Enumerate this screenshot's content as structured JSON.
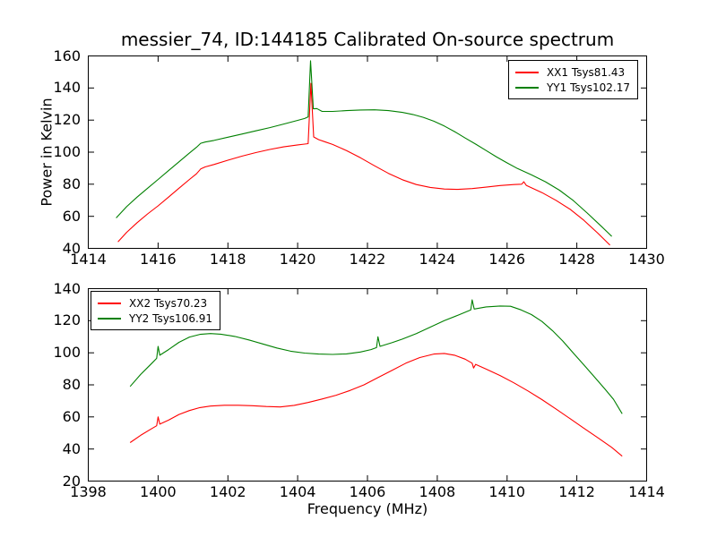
{
  "title": "messier_74, ID:144185 Calibrated On-source spectrum",
  "background": "#ffffff",
  "axis_color": "#000000",
  "chart_data": [
    {
      "type": "line",
      "name": "top-subplot",
      "xlim": [
        1414,
        1430
      ],
      "ylim": [
        40,
        160
      ],
      "xticks": [
        1414,
        1416,
        1418,
        1420,
        1422,
        1424,
        1426,
        1428,
        1430
      ],
      "yticks": [
        40,
        60,
        80,
        100,
        120,
        140,
        160
      ],
      "xlabel": "",
      "ylabel": "Power in Kelvin",
      "grid": false,
      "legend": {
        "loc": "upper right",
        "entries": [
          {
            "label": "XX1 Tsys81.43",
            "color": "#ff0000"
          },
          {
            "label": "YY1 Tsys102.17",
            "color": "#008000"
          }
        ]
      },
      "series": [
        {
          "name": "XX1",
          "color": "#ff0000",
          "points": [
            [
              1414.85,
              44
            ],
            [
              1415.1,
              50
            ],
            [
              1415.4,
              56
            ],
            [
              1415.7,
              61.5
            ],
            [
              1416.0,
              66.5
            ],
            [
              1416.3,
              72
            ],
            [
              1416.6,
              77.5
            ],
            [
              1416.9,
              83
            ],
            [
              1417.1,
              86.5
            ],
            [
              1417.22,
              89.5
            ],
            [
              1417.35,
              90.8
            ],
            [
              1417.6,
              92.3
            ],
            [
              1418.0,
              95
            ],
            [
              1418.4,
              97.5
            ],
            [
              1418.8,
              99.7
            ],
            [
              1419.2,
              101.7
            ],
            [
              1419.6,
              103.3
            ],
            [
              1420.0,
              104.5
            ],
            [
              1420.2,
              105
            ],
            [
              1420.3,
              105.3
            ],
            [
              1420.38,
              143
            ],
            [
              1420.46,
              109.5
            ],
            [
              1420.6,
              107.8
            ],
            [
              1420.8,
              106.3
            ],
            [
              1421.0,
              104.8
            ],
            [
              1421.4,
              101
            ],
            [
              1421.8,
              96.5
            ],
            [
              1422.2,
              91.5
            ],
            [
              1422.6,
              86.8
            ],
            [
              1423.0,
              82.8
            ],
            [
              1423.4,
              79.8
            ],
            [
              1423.8,
              78
            ],
            [
              1424.2,
              77
            ],
            [
              1424.6,
              76.8
            ],
            [
              1425.0,
              77.3
            ],
            [
              1425.4,
              78.2
            ],
            [
              1425.8,
              79.2
            ],
            [
              1426.2,
              79.8
            ],
            [
              1426.42,
              80
            ],
            [
              1426.48,
              81.5
            ],
            [
              1426.55,
              79.3
            ],
            [
              1427.0,
              74.8
            ],
            [
              1427.4,
              70
            ],
            [
              1427.8,
              64.5
            ],
            [
              1428.2,
              57.5
            ],
            [
              1428.6,
              49.5
            ],
            [
              1428.95,
              42
            ]
          ]
        },
        {
          "name": "YY1",
          "color": "#008000",
          "points": [
            [
              1414.8,
              59
            ],
            [
              1415.1,
              66
            ],
            [
              1415.4,
              72
            ],
            [
              1415.7,
              77.5
            ],
            [
              1416.0,
              83
            ],
            [
              1416.3,
              88.5
            ],
            [
              1416.6,
              94
            ],
            [
              1416.9,
              99.5
            ],
            [
              1417.1,
              103
            ],
            [
              1417.22,
              105.5
            ],
            [
              1417.35,
              106.3
            ],
            [
              1417.6,
              107.3
            ],
            [
              1418.0,
              109.3
            ],
            [
              1418.4,
              111.3
            ],
            [
              1418.8,
              113.3
            ],
            [
              1419.2,
              115.3
            ],
            [
              1419.6,
              117.5
            ],
            [
              1420.0,
              119.8
            ],
            [
              1420.2,
              121
            ],
            [
              1420.3,
              122
            ],
            [
              1420.37,
              157
            ],
            [
              1420.45,
              127
            ],
            [
              1420.55,
              127.2
            ],
            [
              1420.7,
              125.4
            ],
            [
              1421.0,
              125.4
            ],
            [
              1421.4,
              125.9
            ],
            [
              1421.8,
              126.3
            ],
            [
              1422.2,
              126.4
            ],
            [
              1422.6,
              125.9
            ],
            [
              1423.0,
              124.8
            ],
            [
              1423.3,
              123.5
            ],
            [
              1423.6,
              121.7
            ],
            [
              1423.9,
              119.3
            ],
            [
              1424.2,
              116.3
            ],
            [
              1424.5,
              112.8
            ],
            [
              1424.8,
              108.8
            ],
            [
              1425.1,
              105
            ],
            [
              1425.4,
              101
            ],
            [
              1425.7,
              97
            ],
            [
              1426.0,
              93.3
            ],
            [
              1426.3,
              89.8
            ],
            [
              1426.7,
              85.8
            ],
            [
              1427.1,
              81.5
            ],
            [
              1427.5,
              76.3
            ],
            [
              1427.9,
              69.8
            ],
            [
              1428.3,
              62
            ],
            [
              1428.7,
              53.8
            ],
            [
              1429.0,
              47.5
            ]
          ]
        }
      ]
    },
    {
      "type": "line",
      "name": "bottom-subplot",
      "xlim": [
        1398,
        1414
      ],
      "ylim": [
        20,
        140
      ],
      "xticks": [
        1398,
        1400,
        1402,
        1404,
        1406,
        1408,
        1410,
        1412,
        1414
      ],
      "yticks": [
        20,
        40,
        60,
        80,
        100,
        120,
        140
      ],
      "xlabel": "Frequency (MHz)",
      "ylabel": "",
      "grid": false,
      "legend": {
        "loc": "upper left",
        "entries": [
          {
            "label": "XX2 Tsys70.23",
            "color": "#ff0000"
          },
          {
            "label": "YY2 Tsys106.91",
            "color": "#008000"
          }
        ]
      },
      "series": [
        {
          "name": "XX2",
          "color": "#ff0000",
          "points": [
            [
              1399.2,
              44
            ],
            [
              1399.5,
              48.5
            ],
            [
              1399.8,
              52.5
            ],
            [
              1399.96,
              54.5
            ],
            [
              1400.0,
              60
            ],
            [
              1400.05,
              55.5
            ],
            [
              1400.3,
              58
            ],
            [
              1400.6,
              61.5
            ],
            [
              1400.9,
              64
            ],
            [
              1401.2,
              65.8
            ],
            [
              1401.5,
              66.8
            ],
            [
              1401.9,
              67.3
            ],
            [
              1402.3,
              67.3
            ],
            [
              1402.7,
              67
            ],
            [
              1403.1,
              66.5
            ],
            [
              1403.5,
              66.2
            ],
            [
              1403.9,
              67.2
            ],
            [
              1404.3,
              69
            ],
            [
              1404.7,
              71.2
            ],
            [
              1405.1,
              73.5
            ],
            [
              1405.5,
              76.5
            ],
            [
              1405.9,
              80
            ],
            [
              1406.3,
              84.5
            ],
            [
              1406.7,
              89
            ],
            [
              1407.1,
              93.5
            ],
            [
              1407.5,
              97
            ],
            [
              1407.9,
              99.2
            ],
            [
              1408.2,
              99.6
            ],
            [
              1408.5,
              98.5
            ],
            [
              1408.8,
              96
            ],
            [
              1409.0,
              93.5
            ],
            [
              1409.04,
              90.5
            ],
            [
              1409.1,
              92.8
            ],
            [
              1409.4,
              89.8
            ],
            [
              1409.8,
              85.8
            ],
            [
              1410.2,
              81.2
            ],
            [
              1410.6,
              76.2
            ],
            [
              1411.0,
              70.8
            ],
            [
              1411.4,
              65
            ],
            [
              1411.8,
              59
            ],
            [
              1412.2,
              53
            ],
            [
              1412.6,
              47
            ],
            [
              1413.0,
              41
            ],
            [
              1413.3,
              35.5
            ]
          ]
        },
        {
          "name": "YY2",
          "color": "#008000",
          "points": [
            [
              1399.2,
              79
            ],
            [
              1399.5,
              86.5
            ],
            [
              1399.8,
              93
            ],
            [
              1399.96,
              96.5
            ],
            [
              1400.0,
              104
            ],
            [
              1400.05,
              98.5
            ],
            [
              1400.3,
              102
            ],
            [
              1400.6,
              106.5
            ],
            [
              1400.9,
              109.8
            ],
            [
              1401.2,
              111.5
            ],
            [
              1401.5,
              112
            ],
            [
              1401.8,
              111.6
            ],
            [
              1402.2,
              110.2
            ],
            [
              1402.6,
              108
            ],
            [
              1403.0,
              105.5
            ],
            [
              1403.4,
              103
            ],
            [
              1403.8,
              101
            ],
            [
              1404.2,
              99.8
            ],
            [
              1404.6,
              99.2
            ],
            [
              1405.0,
              99
            ],
            [
              1405.4,
              99.3
            ],
            [
              1405.8,
              100.5
            ],
            [
              1406.1,
              102
            ],
            [
              1406.26,
              103.2
            ],
            [
              1406.3,
              110
            ],
            [
              1406.36,
              104
            ],
            [
              1406.7,
              106.3
            ],
            [
              1407.0,
              108.5
            ],
            [
              1407.4,
              112
            ],
            [
              1407.8,
              116
            ],
            [
              1408.2,
              120
            ],
            [
              1408.6,
              123.5
            ],
            [
              1408.96,
              126.8
            ],
            [
              1409.0,
              133
            ],
            [
              1409.06,
              127.3
            ],
            [
              1409.4,
              128.6
            ],
            [
              1409.8,
              129.2
            ],
            [
              1410.1,
              129
            ],
            [
              1410.4,
              126.8
            ],
            [
              1410.7,
              123.8
            ],
            [
              1411.0,
              119.5
            ],
            [
              1411.3,
              113.8
            ],
            [
              1411.6,
              107.3
            ],
            [
              1411.9,
              99.8
            ],
            [
              1412.2,
              92.5
            ],
            [
              1412.5,
              85
            ],
            [
              1412.8,
              77.5
            ],
            [
              1413.05,
              71
            ],
            [
              1413.3,
              62
            ]
          ]
        }
      ]
    }
  ]
}
